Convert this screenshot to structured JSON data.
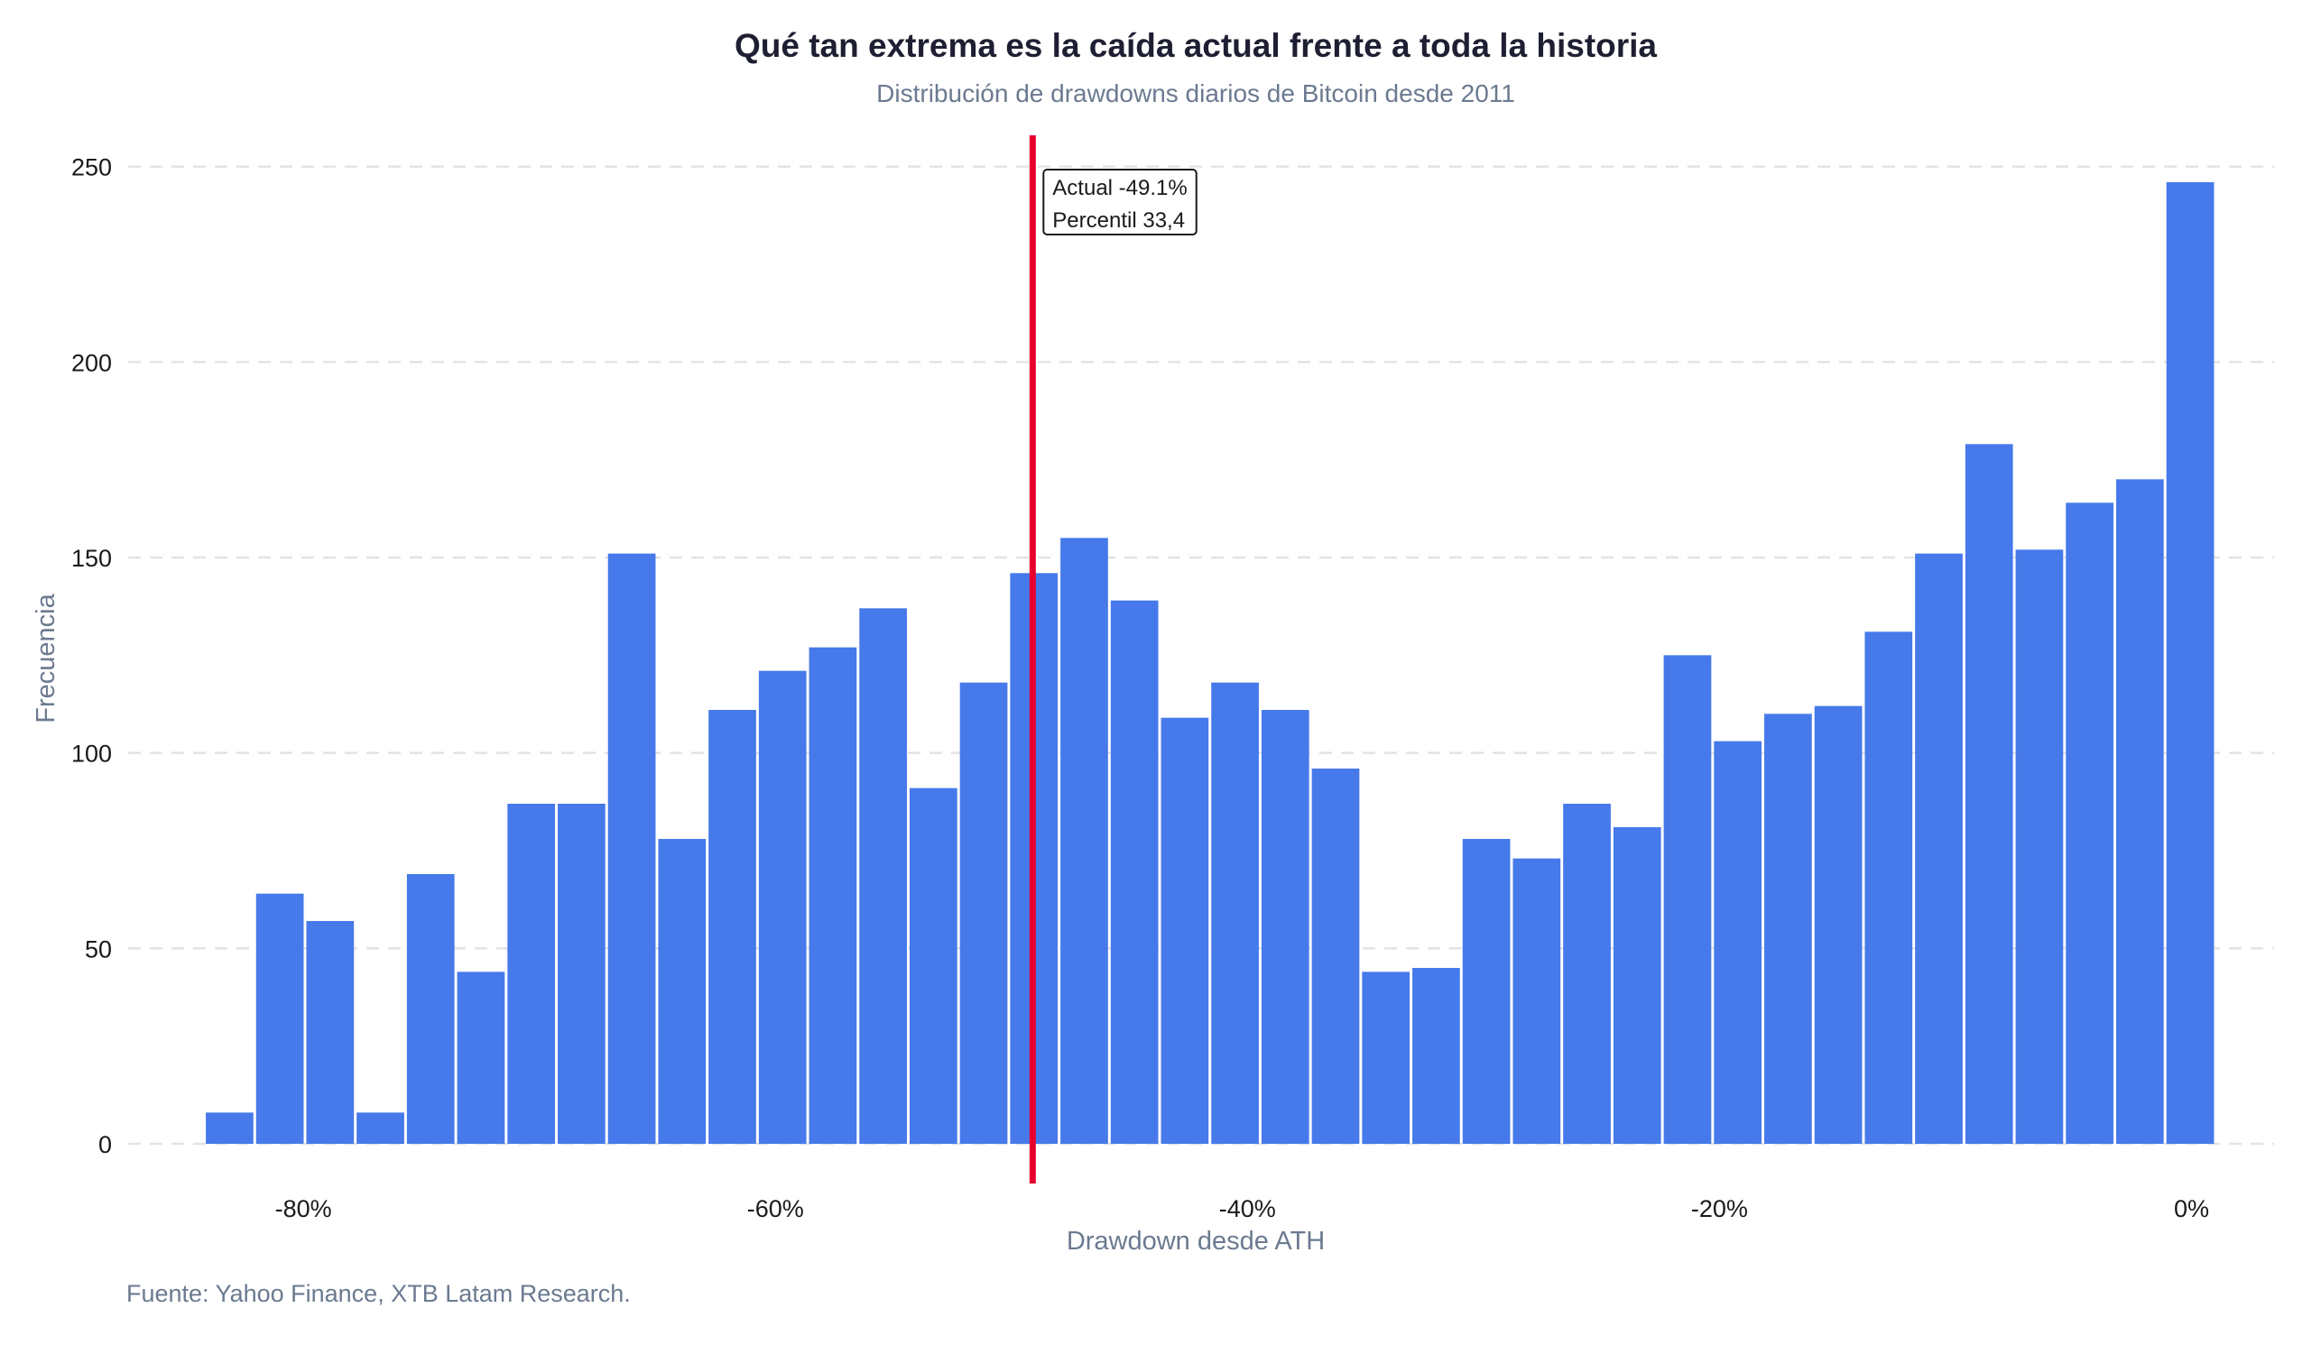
{
  "chart_data": {
    "type": "bar",
    "title": "Qué tan extrema es la caída actual frente a toda la historia",
    "subtitle": "Distribución de drawdowns diarios de Bitcoin desde 2011",
    "xlabel": "Drawdown desde ATH",
    "ylabel": "Frecuencia",
    "caption": "Fuente: Yahoo Finance, XTB Latam Research.",
    "x_ticks": [
      -80,
      -60,
      -40,
      -20,
      0
    ],
    "x_tick_labels": [
      "-80%",
      "-60%",
      "-40%",
      "-20%",
      "0%"
    ],
    "y_ticks": [
      0,
      50,
      100,
      150,
      200,
      250
    ],
    "y_tick_labels": [
      "0",
      "50",
      "100",
      "150",
      "200",
      "250"
    ],
    "xlim": [
      -87.5,
      3.5
    ],
    "ylim": [
      -12,
      258
    ],
    "bin_width": 2.13,
    "bin_start": -84.19,
    "values": [
      8,
      64,
      57,
      8,
      69,
      44,
      87,
      87,
      151,
      78,
      111,
      121,
      127,
      137,
      91,
      118,
      146,
      155,
      139,
      109,
      118,
      111,
      96,
      44,
      45,
      78,
      73,
      87,
      81,
      125,
      103,
      110,
      112,
      131,
      151,
      179,
      152,
      164,
      170,
      246
    ],
    "grid": "horizontal-dashed",
    "legend": "none",
    "bar_color": "#4679ea",
    "annotation": {
      "x": -49.1,
      "color": "#e8002d",
      "lines": [
        "Actual -49.1%",
        "Percentil 33,4"
      ]
    },
    "colors": {
      "title": "#1f1f33",
      "subtitle": "#6b7a90",
      "axis_label": "#6b7a90",
      "tick": "#1a1a1a",
      "grid": "#e3e3e3"
    }
  }
}
